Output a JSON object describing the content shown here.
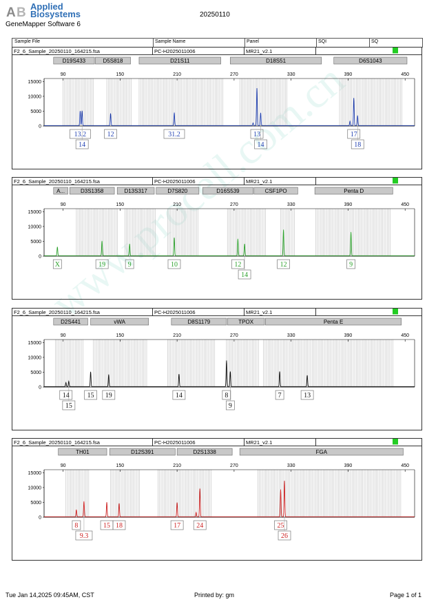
{
  "header": {
    "logo_mark": "AB",
    "brand_line1": "Applied",
    "brand_line2": "Biosystems",
    "software": "GeneMapper Software 6",
    "run_date": "20250110",
    "columns": [
      "Sample File",
      "Sample Name",
      "Panel",
      "SQI",
      "SQ"
    ]
  },
  "footer": {
    "printed_on": "Tue Jan 14,2025 09:45AM, CST",
    "printed_by": "Printed by: gm",
    "page": "Page 1 of 1"
  },
  "watermark": "www.procell.com.cn",
  "colors": {
    "blue": "#1f3fb0",
    "green": "#2aa02a",
    "black": "#111111",
    "red": "#cc2020",
    "status": "#22cc22",
    "bin": "#bdbdbd",
    "marker": "#c8c8c8"
  },
  "chart_data": [
    {
      "type": "line",
      "dye": "blue",
      "sample_file": "F2_6_Sample_20250110_164215.fsa",
      "sample_name": "PC-H2025011006",
      "panel": "MR21_v2.1",
      "xlim": [
        70,
        460
      ],
      "ylim": [
        0,
        16000
      ],
      "x_ticks": [
        90,
        150,
        210,
        270,
        330,
        390,
        450
      ],
      "y_ticks": [
        0,
        5000,
        10000,
        15000
      ],
      "markers": [
        {
          "name": "D19S433",
          "range": [
            80,
            123
          ]
        },
        {
          "name": "D5S818",
          "range": [
            124,
            161
          ]
        },
        {
          "name": "D21S11",
          "range": [
            170,
            256
          ]
        },
        {
          "name": "D18S51",
          "range": [
            266,
            362
          ]
        },
        {
          "name": "D6S1043",
          "range": [
            375,
            452
          ]
        }
      ],
      "bin_ranges": [
        [
          90,
          123
        ],
        [
          136,
          162
        ],
        [
          170,
          259
        ],
        [
          276,
          326
        ],
        [
          381,
          447
        ]
      ],
      "peaks": [
        {
          "x": 108,
          "height": 4900,
          "allele": "13.2",
          "row": 0
        },
        {
          "x": 110,
          "height": 5000,
          "allele": "14",
          "row": 1
        },
        {
          "x": 140,
          "height": 4100,
          "allele": "12",
          "row": 0
        },
        {
          "x": 207,
          "height": 4400,
          "allele": "31.2",
          "row": 0
        },
        {
          "x": 294,
          "height": 12600,
          "allele": "13",
          "row": 0
        },
        {
          "x": 298,
          "height": 4300,
          "allele": "14",
          "row": 1
        },
        {
          "x": 396,
          "height": 9300,
          "allele": "17",
          "row": 0
        },
        {
          "x": 400,
          "height": 3400,
          "allele": "18",
          "row": 1
        }
      ],
      "minor_peaks": [
        {
          "x": 290,
          "height": 900
        },
        {
          "x": 392,
          "height": 1500
        }
      ]
    },
    {
      "type": "line",
      "dye": "green",
      "sample_file": "F2_6_Sample_20250110_164215.fsa",
      "sample_name": "PC-H2025011006",
      "panel": "MR21_v2.1",
      "xlim": [
        70,
        460
      ],
      "ylim": [
        0,
        16000
      ],
      "x_ticks": [
        90,
        150,
        210,
        270,
        330,
        390,
        450
      ],
      "y_ticks": [
        0,
        5000,
        10000,
        15000
      ],
      "markers": [
        {
          "name": "A...",
          "range": [
            80,
            95
          ]
        },
        {
          "name": "D3S1358",
          "range": [
            97,
            144
          ]
        },
        {
          "name": "D13S317",
          "range": [
            147,
            186
          ]
        },
        {
          "name": "D7S820",
          "range": [
            188,
            233
          ]
        },
        {
          "name": "D16S539",
          "range": [
            237,
            290
          ]
        },
        {
          "name": "CSF1PO",
          "range": [
            291,
            337
          ]
        },
        {
          "name": "Penta D",
          "range": [
            355,
            437
          ]
        }
      ],
      "bin_ranges": [
        [
          104,
          148
        ],
        [
          155,
          187
        ],
        [
          200,
          233
        ],
        [
          263,
          304
        ],
        [
          319,
          335
        ],
        [
          356,
          436
        ]
      ],
      "peaks": [
        {
          "x": 84,
          "height": 3000,
          "allele": "X",
          "row": 0
        },
        {
          "x": 131,
          "height": 5000,
          "allele": "19",
          "row": 0
        },
        {
          "x": 160,
          "height": 4000,
          "allele": "9",
          "row": 0
        },
        {
          "x": 207,
          "height": 6100,
          "allele": "10",
          "row": 0
        },
        {
          "x": 274,
          "height": 5700,
          "allele": "12",
          "row": 0
        },
        {
          "x": 281,
          "height": 4000,
          "allele": "14",
          "row": 1
        },
        {
          "x": 322,
          "height": 8800,
          "allele": "12",
          "row": 0
        },
        {
          "x": 393,
          "height": 8000,
          "allele": "9",
          "row": 0
        }
      ],
      "minor_peaks": []
    },
    {
      "type": "line",
      "dye": "black",
      "sample_file": "F2_6_Sample_20250110_164215.fsa",
      "sample_name": "PC-H2025011006",
      "panel": "MR21_v2.1",
      "xlim": [
        70,
        460
      ],
      "ylim": [
        0,
        16000
      ],
      "x_ticks": [
        90,
        150,
        210,
        270,
        330,
        390,
        450
      ],
      "y_ticks": [
        0,
        5000,
        10000,
        15000
      ],
      "markers": [
        {
          "name": "D2S441",
          "range": [
            80,
            116
          ]
        },
        {
          "name": "vWA",
          "range": [
            119,
            180
          ]
        },
        {
          "name": "D8S1179",
          "range": [
            204,
            262
          ]
        },
        {
          "name": "TPOX",
          "range": [
            263,
            302
          ]
        },
        {
          "name": "Penta E",
          "range": [
            303,
            446
          ]
        }
      ],
      "bin_ranges": [
        [
          82,
          112
        ],
        [
          122,
          178
        ],
        [
          200,
          250
        ],
        [
          262,
          296
        ],
        [
          301,
          438
        ]
      ],
      "peaks": [
        {
          "x": 93,
          "height": 1400,
          "allele": "14",
          "row": 0
        },
        {
          "x": 96,
          "height": 1800,
          "allele": "15",
          "row": 1
        },
        {
          "x": 119,
          "height": 5000,
          "allele": "15",
          "row": 0
        },
        {
          "x": 138,
          "height": 4100,
          "allele": "19",
          "row": 0
        },
        {
          "x": 212,
          "height": 4200,
          "allele": "14",
          "row": 0
        },
        {
          "x": 262,
          "height": 8800,
          "allele": "8",
          "row": 0
        },
        {
          "x": 266,
          "height": 5100,
          "allele": "9",
          "row": 1
        },
        {
          "x": 318,
          "height": 5100,
          "allele": "7",
          "row": 0
        },
        {
          "x": 347,
          "height": 3800,
          "allele": "13",
          "row": 0
        }
      ],
      "minor_peaks": []
    },
    {
      "type": "line",
      "dye": "red",
      "sample_file": "F2_6_Sample_20250110_164215.fsa",
      "sample_name": "PC-H2025011006",
      "panel": "MR21_v2.1",
      "xlim": [
        70,
        460
      ],
      "ylim": [
        0,
        16000
      ],
      "x_ticks": [
        90,
        150,
        210,
        270,
        330,
        390,
        450
      ],
      "y_ticks": [
        0,
        5000,
        10000,
        15000
      ],
      "markers": [
        {
          "name": "TH01",
          "range": [
            85,
            136
          ]
        },
        {
          "name": "D12S391",
          "range": [
            139,
            208
          ]
        },
        {
          "name": "D2S1338",
          "range": [
            210,
            268
          ]
        },
        {
          "name": "FGA",
          "range": [
            276,
            448
          ]
        }
      ],
      "bin_ranges": [
        [
          93,
          118
        ],
        [
          140,
          171
        ],
        [
          190,
          246
        ],
        [
          295,
          447
        ]
      ],
      "peaks": [
        {
          "x": 104,
          "height": 2400,
          "allele": "8",
          "row": 0
        },
        {
          "x": 112,
          "height": 5200,
          "allele": "9.3",
          "row": 1
        },
        {
          "x": 136,
          "height": 4900,
          "allele": "15",
          "row": 0
        },
        {
          "x": 149,
          "height": 4500,
          "allele": "18",
          "row": 0
        },
        {
          "x": 210,
          "height": 4800,
          "allele": "17",
          "row": 0
        },
        {
          "x": 234,
          "height": 9500,
          "allele": "24",
          "row": 0
        },
        {
          "x": 319,
          "height": 9200,
          "allele": "25",
          "row": 0
        },
        {
          "x": 323,
          "height": 12100,
          "allele": "26",
          "row": 1
        }
      ],
      "minor_peaks": [
        {
          "x": 230,
          "height": 1500
        }
      ]
    }
  ]
}
